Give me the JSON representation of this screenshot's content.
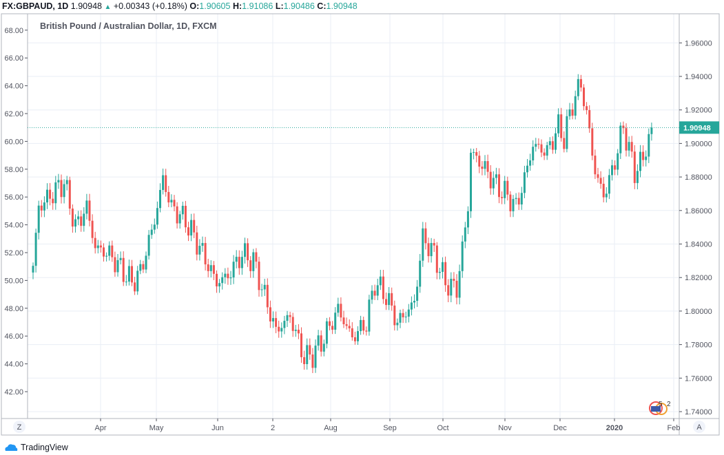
{
  "header": {
    "symbol": "FX:GBPAUD, 1D",
    "last": "1.90948",
    "change": "+0.00343 (+0.18%)",
    "o_label": "O:",
    "o": "1.90605",
    "h_label": "H:",
    "h": "1.91086",
    "l_label": "L:",
    "l": "1.90486",
    "c_label": "C:",
    "c": "1.90948"
  },
  "footer": {
    "brand": "TradingView",
    "z_button": "Z",
    "a_button": "A"
  },
  "colors": {
    "up": "#26a69a",
    "down": "#ef5350",
    "grid": "#e9eef5",
    "price_line": "#26a69a"
  },
  "chart_data": {
    "type": "candlestick",
    "title": "British Pound / Australian Dollar, 1D, FXCM",
    "right_axis": {
      "ticks": [
        "1.74000",
        "1.76000",
        "1.78000",
        "1.80000",
        "1.82000",
        "1.84000",
        "1.86000",
        "1.88000",
        "1.90000",
        "1.92000",
        "1.94000",
        "1.96000"
      ],
      "ylim": [
        1.733,
        1.978
      ]
    },
    "left_axis": {
      "ticks": [
        "42.00",
        "44.00",
        "46.00",
        "48.00",
        "50.00",
        "52.00",
        "54.00",
        "56.00",
        "58.00",
        "60.00",
        "62.00",
        "64.00",
        "66.00",
        "68.00"
      ]
    },
    "x_ticks": [
      "Apr",
      "May",
      "Jun",
      "2",
      "Aug",
      "Sep",
      "Oct",
      "Nov",
      "Dec",
      "2020",
      "Feb"
    ],
    "current_price": "1.90948",
    "close_waypoints": [
      [
        0,
        1.827
      ],
      [
        2,
        1.862
      ],
      [
        11,
        1.877
      ],
      [
        15,
        1.85
      ],
      [
        19,
        1.862
      ],
      [
        22,
        1.838
      ],
      [
        27,
        1.834
      ],
      [
        35,
        1.817
      ],
      [
        38,
        1.823
      ],
      [
        43,
        1.854
      ],
      [
        46,
        1.879
      ],
      [
        49,
        1.862
      ],
      [
        54,
        1.854
      ],
      [
        59,
        1.838
      ],
      [
        65,
        1.817
      ],
      [
        69,
        1.821
      ],
      [
        74,
        1.834
      ],
      [
        78,
        1.83
      ],
      [
        82,
        1.809
      ],
      [
        86,
        1.788
      ],
      [
        91,
        1.797
      ],
      [
        96,
        1.772
      ],
      [
        99,
        1.774
      ],
      [
        103,
        1.784
      ],
      [
        108,
        1.801
      ],
      [
        113,
        1.784
      ],
      [
        118,
        1.793
      ],
      [
        121,
        1.817
      ],
      [
        125,
        1.809
      ],
      [
        129,
        1.793
      ],
      [
        135,
        1.805
      ],
      [
        138,
        1.844
      ],
      [
        142,
        1.834
      ],
      [
        146,
        1.817
      ],
      [
        150,
        1.813
      ],
      [
        154,
        1.862
      ],
      [
        155,
        1.895
      ],
      [
        159,
        1.887
      ],
      [
        164,
        1.875
      ],
      [
        169,
        1.867
      ],
      [
        171,
        1.862
      ],
      [
        174,
        1.879
      ],
      [
        177,
        1.899
      ],
      [
        182,
        1.895
      ],
      [
        186,
        1.91
      ],
      [
        188,
        1.903
      ],
      [
        191,
        1.924
      ],
      [
        194,
        1.936
      ],
      [
        197,
        1.907
      ],
      [
        199,
        1.883
      ],
      [
        202,
        1.869
      ],
      [
        205,
        1.883
      ],
      [
        209,
        1.91
      ],
      [
        213,
        1.883
      ],
      [
        216,
        1.891
      ],
      [
        219,
        1.9095
      ]
    ]
  }
}
